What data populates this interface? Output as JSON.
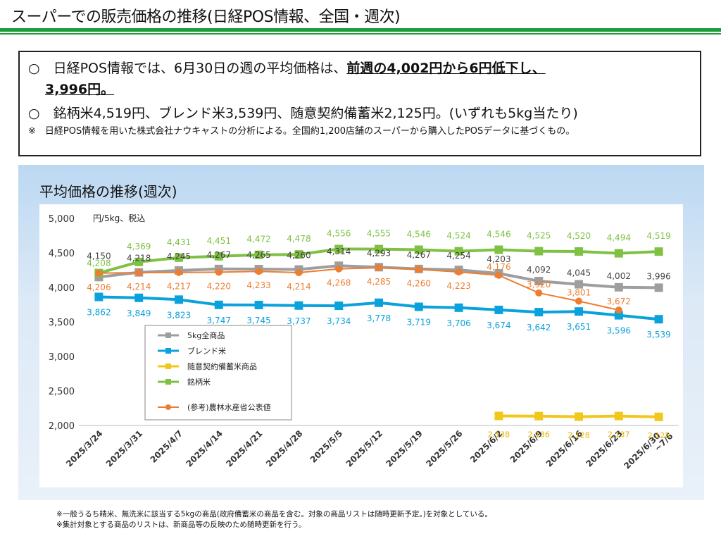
{
  "page": {
    "title": "スーパーでの販売価格の推移(日経POS情報、全国・週次)"
  },
  "summary": {
    "bullet1_prefix": "○　日経POS情報では、6月30日の週の平均価格は、",
    "bullet1_emphasis": "前週の4,002円から6円低下し、",
    "bullet1_emphasis2": "3,996円。",
    "bullet2": "○　銘柄米4,519円、ブレンド米3,539円、随意契約備蓄米2,125円。(いずれも5kg当たり)",
    "note": "※　日経POS情報を用いた株式会社ナウキャストの分析による。全国約1,200店舗のスーパーから購入したPOSデータに基づくもの。"
  },
  "chart_data": {
    "type": "line",
    "title": "平均価格の推移(週次)",
    "ylabel": "円/5kg、税込",
    "ylim": [
      2000,
      5000
    ],
    "yticks": [
      "2,000",
      "2,500",
      "3,000",
      "3,500",
      "4,000",
      "4,500",
      "5,000"
    ],
    "ytick_values": [
      2000,
      2500,
      3000,
      3500,
      4000,
      4500,
      5000
    ],
    "categories": [
      "2025/3/24",
      "2025/3/31",
      "2025/4/7",
      "2025/4/14",
      "2025/4/21",
      "2025/4/28",
      "2025/5/5",
      "2025/5/12",
      "2025/5/19",
      "2025/5/26",
      "2025/6/2",
      "2025/6/9",
      "2025/6/16",
      "2025/6/23",
      "2025/6/30 ~7/6"
    ],
    "legend_position": "inside-lower-left",
    "series": [
      {
        "name": "5kg全商品",
        "color": "#9e9e9e",
        "marker": "square",
        "values": [
          4150,
          4218,
          4245,
          4267,
          4265,
          4260,
          4314,
          4293,
          4267,
          4254,
          4203,
          4092,
          4045,
          4002,
          3996
        ],
        "labels": [
          "4,150",
          "4,218",
          "4,245",
          "4,267",
          "4,265",
          "4,260",
          "4,314",
          "4,293",
          "4,267",
          "4,254",
          "4,203",
          "4,092",
          "4,045",
          "4,002",
          "3,996"
        ]
      },
      {
        "name": "ブレンド米",
        "color": "#0aa2dc",
        "marker": "square",
        "values": [
          3862,
          3849,
          3823,
          3747,
          3745,
          3737,
          3734,
          3778,
          3719,
          3706,
          3674,
          3642,
          3651,
          3596,
          3539
        ],
        "labels": [
          "3,862",
          "3,849",
          "3,823",
          "3,747",
          "3,745",
          "3,737",
          "3,734",
          "3,778",
          "3,719",
          "3,706",
          "3,674",
          "3,642",
          "3,651",
          "3,596",
          "3,539"
        ]
      },
      {
        "name": "随意契約備蓄米商品",
        "color": "#f2c71b",
        "marker": "square",
        "values": [
          null,
          null,
          null,
          null,
          null,
          null,
          null,
          null,
          null,
          null,
          2138,
          2136,
          2128,
          2137,
          2125
        ],
        "labels": [
          "",
          "",
          "",
          "",
          "",
          "",
          "",
          "",
          "",
          "",
          "2,138",
          "2,136",
          "2,128",
          "2,137",
          "2,125"
        ]
      },
      {
        "name": "銘柄米",
        "color": "#7ec143",
        "marker": "square",
        "values": [
          4208,
          4369,
          4431,
          4451,
          4472,
          4478,
          4556,
          4555,
          4546,
          4524,
          4546,
          4525,
          4520,
          4494,
          4519
        ],
        "labels": [
          "4,208",
          "4,369",
          "4,431",
          "4,451",
          "4,472",
          "4,478",
          "4,556",
          "4,555",
          "4,546",
          "4,524",
          "4,546",
          "4,525",
          "4,520",
          "4,494",
          "4,519"
        ]
      },
      {
        "name": "(参考)農林水産省公表値",
        "color": "#ed7d31",
        "marker": "circle",
        "values": [
          4206,
          4214,
          4217,
          4220,
          4233,
          4214,
          4268,
          4285,
          4260,
          4223,
          4176,
          3920,
          3801,
          3672,
          null
        ],
        "labels": [
          "4,206",
          "4,214",
          "4,217",
          "4,220",
          "4,233",
          "4,214",
          "4,268",
          "4,285",
          "4,260",
          "4,223",
          "4,176",
          "3,920",
          "3,801",
          "3,672",
          ""
        ]
      }
    ]
  },
  "footnotes": [
    "※一般うるち精米、無洗米に該当する5kgの商品(政府備蓄米の商品を含む。対象の商品リストは随時更新予定。)を対象としている。",
    "※集計対象とする商品のリストは、新商品等の反映のため随時更新を行う。"
  ]
}
